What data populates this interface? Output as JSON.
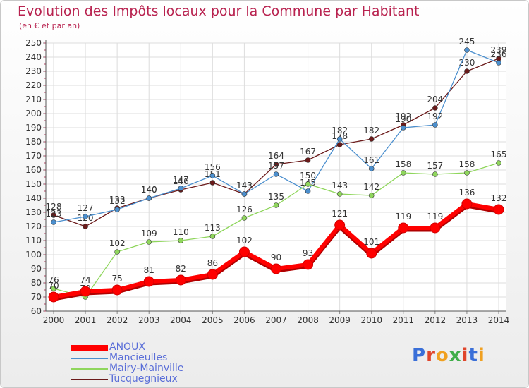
{
  "chart_data": {
    "type": "line",
    "title": "Evolution des Impôts locaux pour la Commune par Habitant",
    "subtitle": "(en € et par an)",
    "categories": [
      "2000",
      "2001",
      "2002",
      "2003",
      "2004",
      "2005",
      "2006",
      "2007",
      "2008",
      "2009",
      "2010",
      "2011",
      "2012",
      "2013",
      "2014"
    ],
    "ylim": [
      60,
      250
    ],
    "yticks": [
      60,
      70,
      80,
      90,
      100,
      110,
      120,
      130,
      140,
      150,
      160,
      170,
      180,
      190,
      200,
      210,
      220,
      230,
      240,
      250
    ],
    "grid": true,
    "legend_position": "bottom-left",
    "series": [
      {
        "name": "ANOUX",
        "color": "#ff0000",
        "values": [
          70,
          74,
          75,
          81,
          82,
          86,
          102,
          90,
          93,
          121,
          101,
          119,
          119,
          136,
          132
        ]
      },
      {
        "name": "Mancieulles",
        "color": "#4b8fce",
        "values": [
          123,
          127,
          132,
          140,
          147,
          156,
          143,
          157,
          145,
          182,
          161,
          190,
          192,
          245,
          236
        ]
      },
      {
        "name": "Mairy-Mainville",
        "color": "#8fd65c",
        "values": [
          76,
          70,
          102,
          109,
          110,
          113,
          126,
          135,
          150,
          143,
          142,
          158,
          157,
          158,
          165
        ]
      },
      {
        "name": "Tucquegnieux",
        "color": "#6b1a1a",
        "values": [
          128,
          120,
          133,
          140,
          146,
          151,
          143,
          164,
          167,
          178,
          182,
          192,
          204,
          230,
          239
        ]
      }
    ]
  },
  "logo": {
    "text": "Proxiti"
  }
}
